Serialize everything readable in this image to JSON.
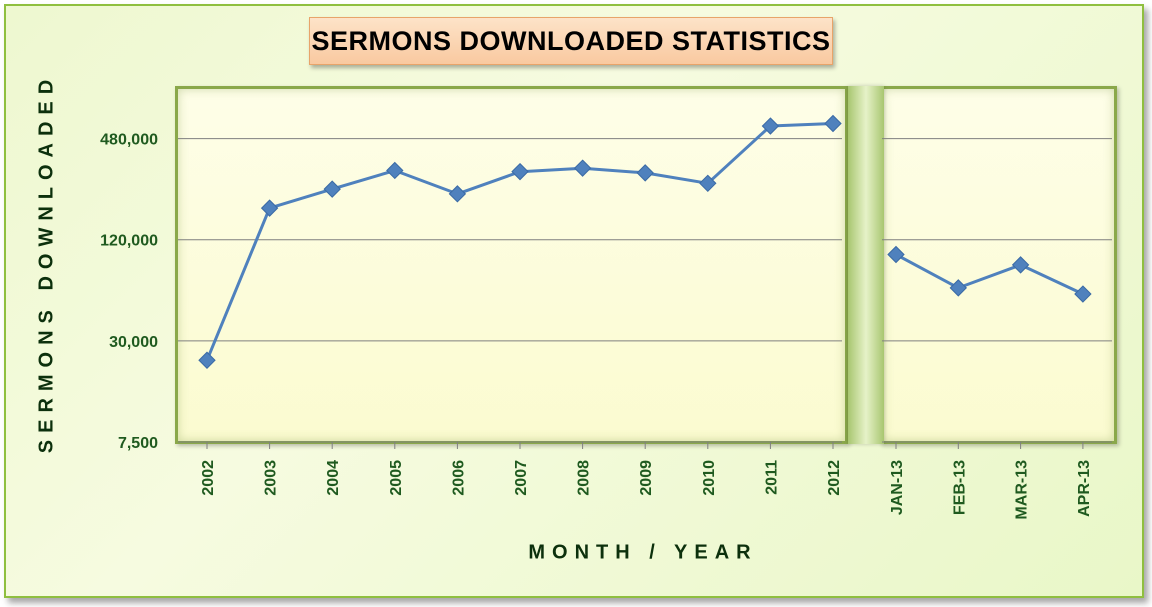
{
  "chart_data": {
    "type": "line",
    "title": "SERMONS DOWNLOADED STATISTICS",
    "xlabel": "MONTH  /  YEAR",
    "ylabel": "SERMONS DOWNLOADED",
    "y_scale": "log",
    "ylim": [
      7500,
      960000
    ],
    "y_ticks": [
      7500,
      30000,
      120000,
      480000
    ],
    "y_tick_labels": [
      "7,500",
      "30,000",
      "120,000",
      "480,000"
    ],
    "grid": "horizontal",
    "marker": "diamond",
    "colors": {
      "line": "#4f81bd",
      "marker": "#4f81bd",
      "axis_text": "#1f5a1f"
    },
    "segments": [
      {
        "categories": [
          "2002",
          "2003",
          "2004",
          "2005",
          "2006",
          "2007",
          "2008",
          "2009",
          "2010",
          "2011",
          "2012"
        ],
        "values": [
          23000,
          185000,
          240000,
          310000,
          225000,
          305000,
          320000,
          300000,
          260000,
          570000,
          590000
        ]
      },
      {
        "categories": [
          "JAN-13",
          "FEB-13",
          "MAR-13",
          "APR-13"
        ],
        "values": [
          98000,
          62000,
          85000,
          57000
        ]
      }
    ]
  }
}
